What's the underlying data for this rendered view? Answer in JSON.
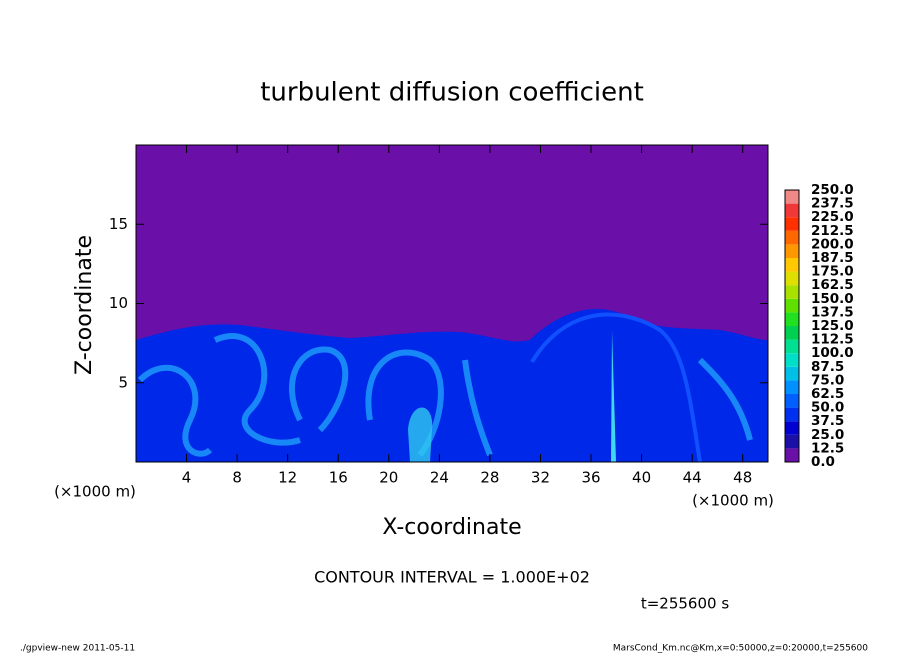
{
  "chart_data": {
    "type": "heatmap",
    "title": "turbulent diffusion coefficient",
    "x_label": "X-coordinate",
    "y_label": "Z-coordinate",
    "x_unit": "(×1000 m)",
    "y_unit": "(×1000 m)",
    "xlim": [
      0,
      50
    ],
    "xticks": [
      4,
      8,
      12,
      16,
      20,
      24,
      28,
      32,
      36,
      40,
      44,
      48
    ],
    "ylim": [
      0,
      20
    ],
    "yticks": [
      5,
      10,
      15
    ],
    "colorbar": {
      "levels": [
        {
          "value": 0,
          "label": "0.0"
        },
        {
          "value": 12.5,
          "label": "12.5"
        },
        {
          "value": 25,
          "label": "25.0"
        },
        {
          "value": 37.5,
          "label": "37.5"
        },
        {
          "value": 50,
          "label": "50.0"
        },
        {
          "value": 62.5,
          "label": "62.5"
        },
        {
          "value": 75,
          "label": "75.0"
        },
        {
          "value": 87.5,
          "label": "87.5"
        },
        {
          "value": 100,
          "label": "100.0"
        },
        {
          "value": 112.5,
          "label": "112.5"
        },
        {
          "value": 125,
          "label": "125.0"
        },
        {
          "value": 137.5,
          "label": "137.5"
        },
        {
          "value": 150,
          "label": "150.0"
        },
        {
          "value": 162.5,
          "label": "162.5"
        },
        {
          "value": 175,
          "label": "175.0"
        },
        {
          "value": 187.5,
          "label": "187.5"
        },
        {
          "value": 200,
          "label": "200.0"
        },
        {
          "value": 212.5,
          "label": "212.5"
        },
        {
          "value": 225,
          "label": "225.0"
        },
        {
          "value": 237.5,
          "label": "237.5"
        },
        {
          "value": 250,
          "label": "250.0"
        }
      ],
      "colors": [
        "#6a0fa8",
        "#1a10a8",
        "#0000d0",
        "#0030f0",
        "#0060ff",
        "#0090ff",
        "#00c0e8",
        "#00e0c8",
        "#00e090",
        "#00d050",
        "#20e020",
        "#60e000",
        "#a8e000",
        "#e0e000",
        "#ffc800",
        "#ff9800",
        "#ff6800",
        "#ff3000",
        "#f03838",
        "#f08888"
      ]
    },
    "contour_interval": "CONTOUR INTERVAL = 1.000E+02",
    "time": "t=255600 s",
    "footer_left": "./gpview-new   2011-05-11",
    "footer_right": "MarsCond_Km.nc@Km,x=0:50000,z=0:20000,t=255600"
  }
}
